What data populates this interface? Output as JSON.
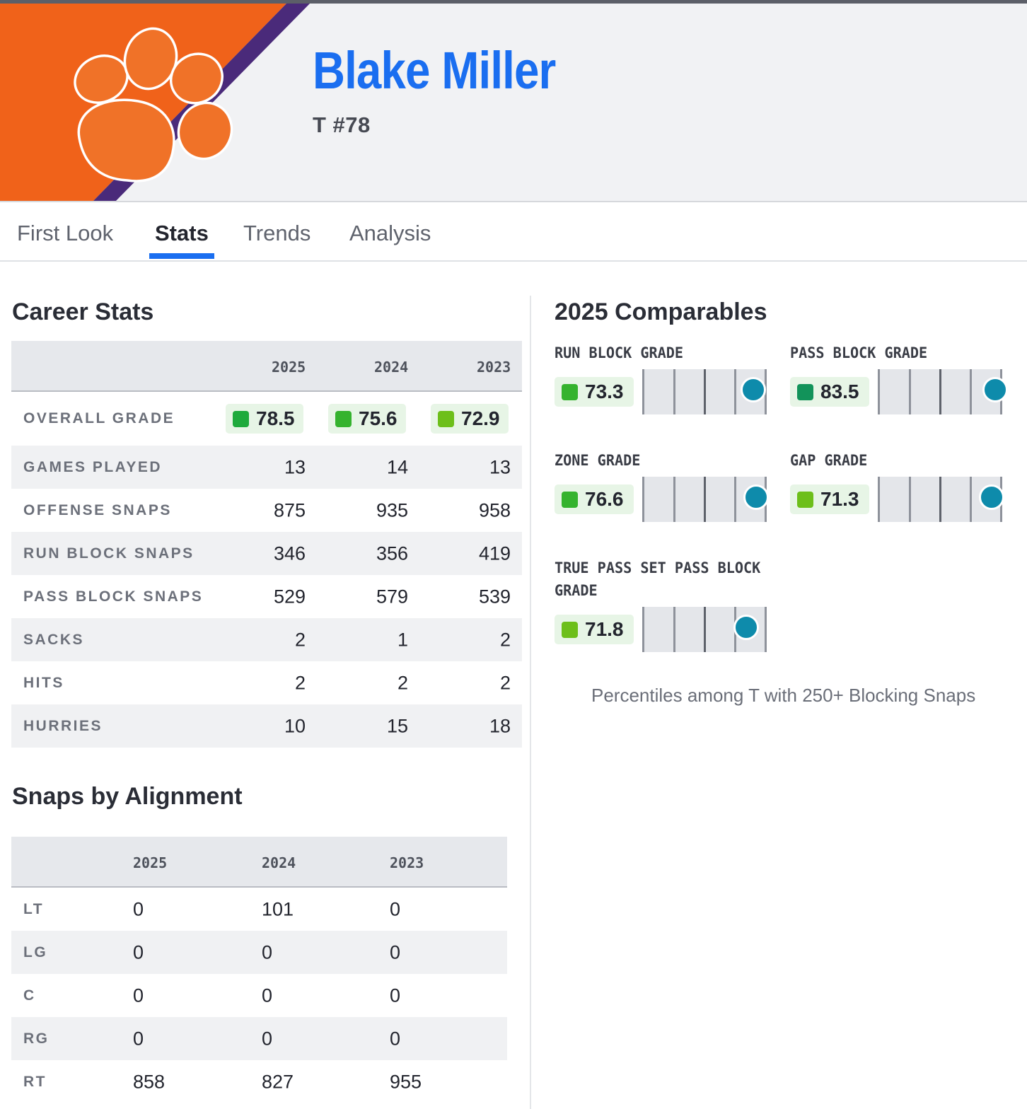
{
  "player": {
    "name": "Blake Miller",
    "position_number": "T #78"
  },
  "colors": {
    "team_orange": "#f0621a",
    "team_purple": "#4a2a7a",
    "accent_blue": "#1a6ef0",
    "dot_teal": "#0e8bab"
  },
  "tabs": [
    {
      "label": "First Look",
      "active": false
    },
    {
      "label": "Stats",
      "active": true
    },
    {
      "label": "Trends",
      "active": false
    },
    {
      "label": "Analysis",
      "active": false
    }
  ],
  "career_stats": {
    "title": "Career Stats",
    "columns": [
      "2025",
      "2024",
      "2023"
    ],
    "overall_grade": {
      "label": "OVERALL GRADE",
      "values": [
        "78.5",
        "75.6",
        "72.9"
      ],
      "colors": [
        "#1eaa3c",
        "#35b32e",
        "#6dbf1a"
      ]
    },
    "rows": [
      {
        "label": "GAMES PLAYED",
        "values": [
          "13",
          "14",
          "13"
        ]
      },
      {
        "label": "OFFENSE SNAPS",
        "values": [
          "875",
          "935",
          "958"
        ]
      },
      {
        "label": "RUN BLOCK SNAPS",
        "values": [
          "346",
          "356",
          "419"
        ]
      },
      {
        "label": "PASS BLOCK SNAPS",
        "values": [
          "529",
          "579",
          "539"
        ]
      },
      {
        "label": "SACKS",
        "values": [
          "2",
          "1",
          "2"
        ]
      },
      {
        "label": "HITS",
        "values": [
          "2",
          "2",
          "2"
        ]
      },
      {
        "label": "HURRIES",
        "values": [
          "10",
          "15",
          "18"
        ]
      }
    ]
  },
  "alignment": {
    "title": "Snaps by Alignment",
    "columns": [
      "2025",
      "2024",
      "2023"
    ],
    "rows": [
      {
        "label": "LT",
        "values": [
          "0",
          "101",
          "0"
        ]
      },
      {
        "label": "LG",
        "values": [
          "0",
          "0",
          "0"
        ]
      },
      {
        "label": "C",
        "values": [
          "0",
          "0",
          "0"
        ]
      },
      {
        "label": "RG",
        "values": [
          "0",
          "0",
          "0"
        ]
      },
      {
        "label": "RT",
        "values": [
          "858",
          "827",
          "955"
        ]
      }
    ]
  },
  "comparables": {
    "title": "2025 Comparables",
    "items": [
      {
        "label": "RUN BLOCK GRADE",
        "grade": "73.3",
        "color": "#35b32e",
        "percentile": 0.91
      },
      {
        "label": "PASS BLOCK GRADE",
        "grade": "83.5",
        "color": "#12935a",
        "percentile": 0.96
      },
      {
        "label": "ZONE GRADE",
        "grade": "76.6",
        "color": "#35b32e",
        "percentile": 0.93
      },
      {
        "label": "GAP GRADE",
        "grade": "71.3",
        "color": "#6dbf1a",
        "percentile": 0.93
      },
      {
        "label": "TRUE PASS SET PASS BLOCK GRADE",
        "grade": "71.8",
        "color": "#6dbf1a",
        "percentile": 0.85
      }
    ],
    "footnote": "Percentiles among T with 250+ Blocking Snaps"
  }
}
